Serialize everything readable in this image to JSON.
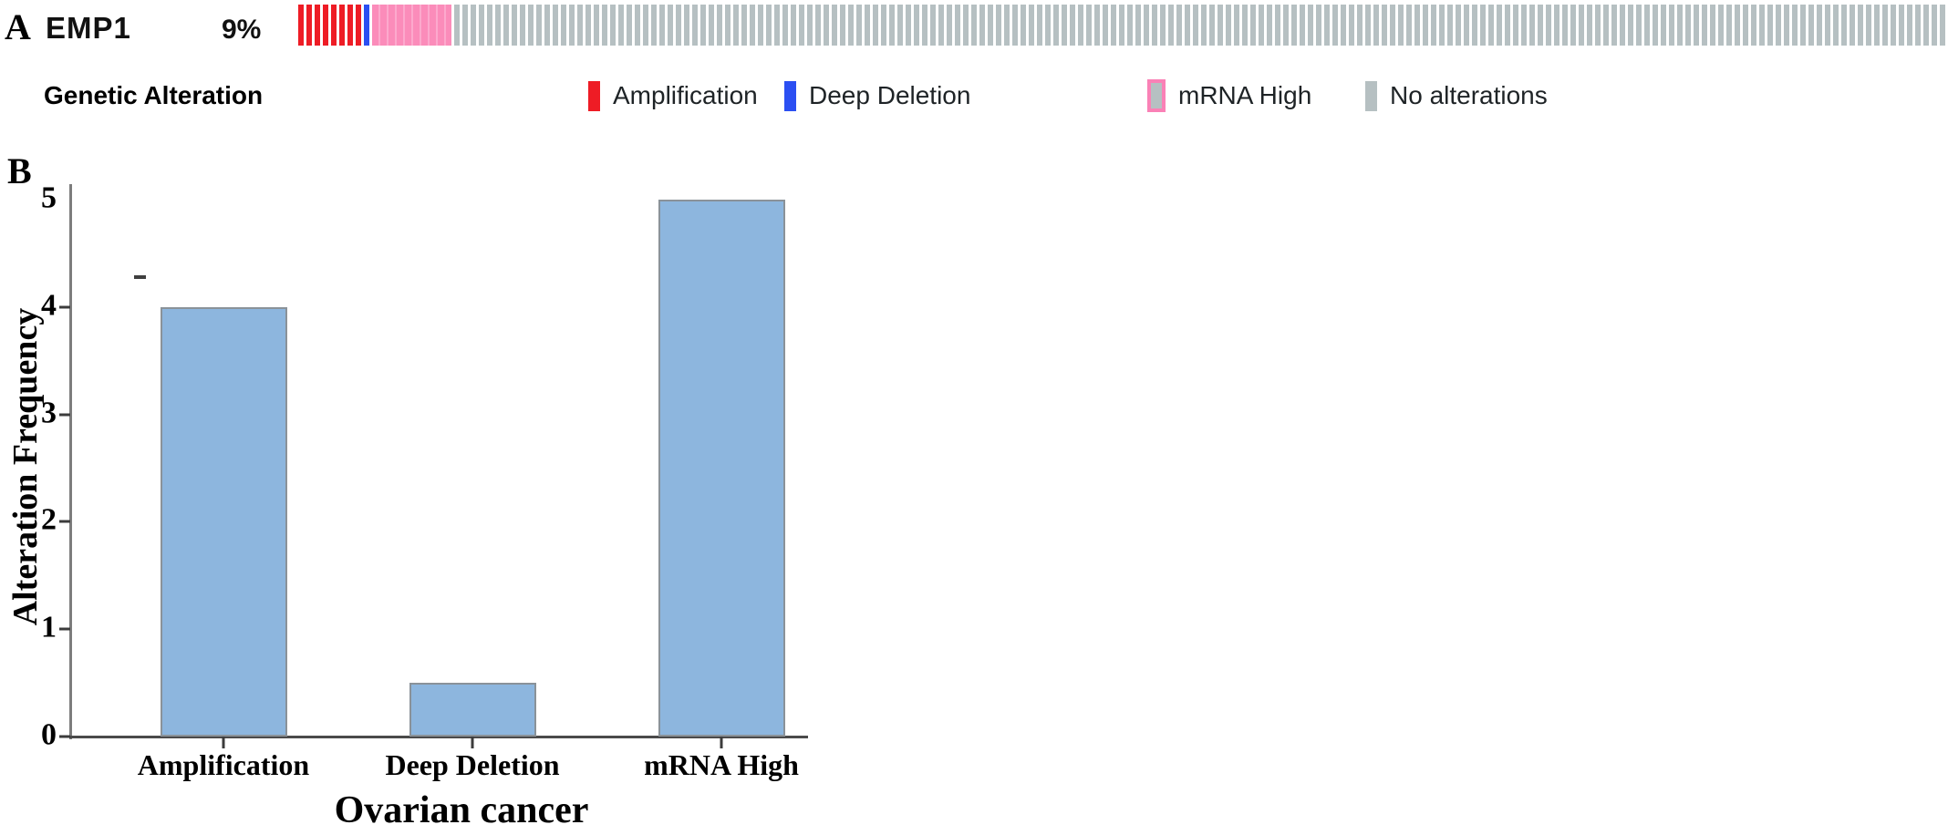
{
  "figure": {
    "panel_a_label": "A",
    "panel_b_label": "B"
  },
  "oncoprint": {
    "gene": "EMP1",
    "alteration_frequency": "9%",
    "legend_title": "Genetic Alteration",
    "legend": [
      {
        "label": "Amplification",
        "color": "#ee1c25"
      },
      {
        "label": "Deep Deletion",
        "color": "#2b4ff2"
      },
      {
        "label": "mRNA High",
        "color": "#b6c0c2",
        "border": "#fa81b6"
      },
      {
        "label": "No alterations",
        "color": "#b6c0c2"
      }
    ],
    "track_segments": [
      {
        "type": "Amplification",
        "count": 8,
        "color": "#ee1c25"
      },
      {
        "type": "Deep Deletion",
        "count": 1,
        "color": "#2b4ff2"
      },
      {
        "type": "mRNA High",
        "count": 10,
        "color": "#fb8cba",
        "stripe": "#fca9cd",
        "continuous": true
      },
      {
        "type": "No alterations",
        "count": 182,
        "color": "#b6c0c2"
      }
    ]
  },
  "chart_data": {
    "type": "bar",
    "categories": [
      "Amplification",
      "Deep Deletion",
      "mRNA High"
    ],
    "values": [
      4,
      0.5,
      5
    ],
    "title": "",
    "xlabel": "Ovarian cancer",
    "ylabel": "Alteration Frequency",
    "ylim": [
      0,
      5
    ],
    "yticks": [
      0,
      1,
      2,
      3,
      4,
      5
    ],
    "bar_color": "#8db6de",
    "bar_border_color": "#8a9299",
    "grid": false,
    "legend_position": "none"
  }
}
